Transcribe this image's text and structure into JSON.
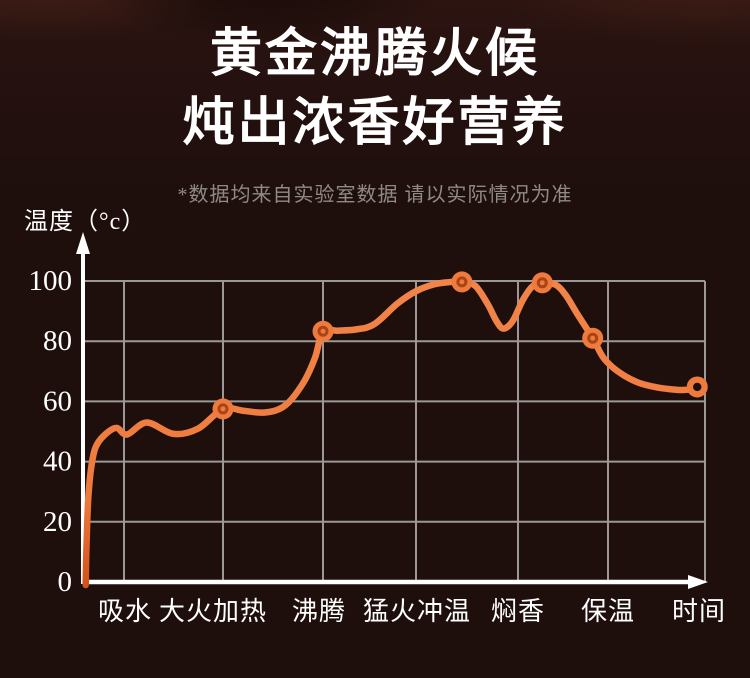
{
  "header": {
    "title_line1": "黄金沸腾火候",
    "title_line2": "炖出浓香好营养",
    "disclaimer": "*数据均来自实验室数据 请以实际情况为准"
  },
  "chart_data": {
    "type": "line",
    "title": "黄金沸腾火候 炖出浓香好营养",
    "ylabel": "温度（°c）",
    "xlabel": "时间",
    "ylim": [
      0,
      100
    ],
    "yticks": [
      0,
      20,
      40,
      60,
      80,
      100
    ],
    "categories": [
      "吸水",
      "大火加热",
      "沸腾",
      "猛火冲温",
      "焖香",
      "保温",
      "时间"
    ],
    "grid": true,
    "legend": "none",
    "colors": {
      "line": "#ee7a3d",
      "line_dark": "#d4531d",
      "line_light": "#f28449",
      "marker_fill": "#ee7a3d",
      "marker_ring": "#a84418",
      "marker_hole": "#1f0f0c",
      "axis": "#ffffff",
      "grid_line": "#9b9896",
      "tick_text": "#ffffff"
    },
    "stage_temperatures": [
      {
        "stage": "吸水",
        "temp": 50
      },
      {
        "stage": "大火加热",
        "temp": 58
      },
      {
        "stage": "沸腾",
        "temp": 83
      },
      {
        "stage": "猛火冲温",
        "temp": 99
      },
      {
        "stage": "焖香",
        "temp": 99
      },
      {
        "stage": "保温",
        "temp": 81
      },
      {
        "stage": "时间(末端)",
        "temp": 65
      }
    ],
    "curve_points": [
      [
        0.065,
        -1
      ],
      [
        0.09,
        14
      ],
      [
        0.13,
        28
      ],
      [
        0.2,
        38
      ],
      [
        0.3,
        44.5
      ],
      [
        0.5,
        48.5
      ],
      [
        0.81,
        51.2
      ],
      [
        1.03,
        49
      ],
      [
        1.23,
        53
      ],
      [
        1.5,
        49.2
      ],
      [
        1.75,
        51
      ],
      [
        2.0,
        57.5
      ],
      [
        2.2,
        56.9
      ],
      [
        2.42,
        56.3
      ],
      [
        2.62,
        58.6
      ],
      [
        2.8,
        66
      ],
      [
        2.92,
        74.5
      ],
      [
        3.0,
        83.3
      ],
      [
        3.15,
        83.5
      ],
      [
        3.35,
        83.9
      ],
      [
        3.55,
        85.6
      ],
      [
        3.8,
        92.5
      ],
      [
        4.0,
        96.6
      ],
      [
        4.18,
        98.9
      ],
      [
        4.32,
        99.6
      ],
      [
        4.45,
        99.7
      ],
      [
        4.58,
        98.4
      ],
      [
        4.7,
        92.5
      ],
      [
        4.79,
        86.6
      ],
      [
        4.86,
        84.2
      ],
      [
        4.95,
        86.8
      ],
      [
        5.05,
        93.5
      ],
      [
        5.16,
        98.2
      ],
      [
        5.27,
        99.4
      ],
      [
        5.42,
        98.7
      ],
      [
        5.53,
        95.3
      ],
      [
        5.66,
        89
      ],
      [
        5.83,
        81
      ],
      [
        5.95,
        74.5
      ],
      [
        6.1,
        70
      ],
      [
        6.3,
        66.4
      ],
      [
        6.5,
        64.7
      ],
      [
        6.7,
        63.9
      ],
      [
        6.82,
        63.9
      ],
      [
        6.92,
        64.8
      ]
    ],
    "markers": [
      [
        2.0,
        57.5
      ],
      [
        3.0,
        83.3
      ],
      [
        4.45,
        99.7
      ],
      [
        5.27,
        99.4
      ],
      [
        5.83,
        81
      ]
    ],
    "end_marker": [
      6.92,
      64.8
    ]
  }
}
